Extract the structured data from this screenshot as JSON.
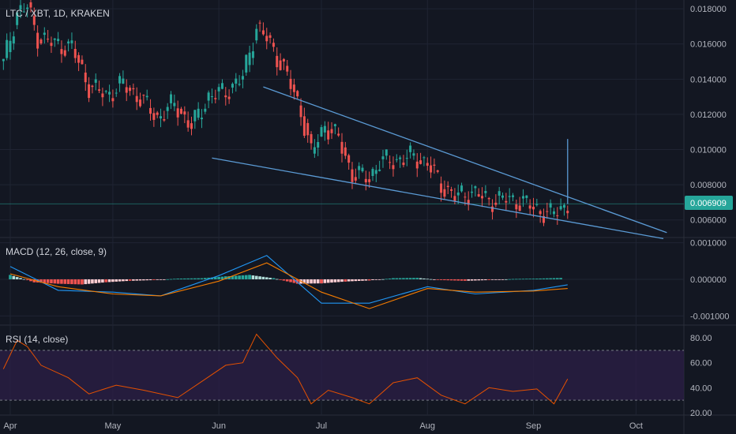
{
  "header": {
    "symbol_title": "LTC / XBT, 1D, KRAKEN",
    "macd_title": "MACD (12, 26, close, 9)",
    "rsi_title": "RSI (14, close)",
    "last_price": "0.006909"
  },
  "colors": {
    "background": "#131722",
    "grid": "#1f2433",
    "separator": "#2a2e39",
    "up": "#26a69a",
    "down": "#ef5350",
    "trendline": "#5b9bd5",
    "macd_line": "#2196f3",
    "signal_line": "#f57c00",
    "rsi_line": "#e65100",
    "rsi_band": "#2a1e45",
    "price_tag": "#26a69a"
  },
  "chart_data": [
    {
      "type": "candlestick",
      "title": "LTC / XBT, 1D, KRAKEN",
      "x_ticks": [
        "Apr",
        "May",
        "Jun",
        "Jul",
        "Aug",
        "Sep",
        "Oct"
      ],
      "y_ticks": [
        "0.018000",
        "0.016000",
        "0.014000",
        "0.012000",
        "0.010000",
        "0.008000",
        "0.006000"
      ],
      "ylim": [
        0.005,
        0.0185
      ],
      "last_value": 0.006909,
      "close_series": [
        {
          "date": "2019-03-30",
          "value": 0.0149
        },
        {
          "date": "2019-04-03",
          "value": 0.0178
        },
        {
          "date": "2019-04-06",
          "value": 0.0181
        },
        {
          "date": "2019-04-09",
          "value": 0.0164
        },
        {
          "date": "2019-04-14",
          "value": 0.016
        },
        {
          "date": "2019-04-19",
          "value": 0.0158
        },
        {
          "date": "2019-04-24",
          "value": 0.0136
        },
        {
          "date": "2019-04-29",
          "value": 0.0131
        },
        {
          "date": "2019-05-04",
          "value": 0.0137
        },
        {
          "date": "2019-05-09",
          "value": 0.0129
        },
        {
          "date": "2019-05-14",
          "value": 0.0118
        },
        {
          "date": "2019-05-19",
          "value": 0.0126
        },
        {
          "date": "2019-05-24",
          "value": 0.0113
        },
        {
          "date": "2019-05-29",
          "value": 0.013
        },
        {
          "date": "2019-06-03",
          "value": 0.0133
        },
        {
          "date": "2019-06-08",
          "value": 0.0141
        },
        {
          "date": "2019-06-12",
          "value": 0.017
        },
        {
          "date": "2019-06-15",
          "value": 0.0163
        },
        {
          "date": "2019-06-20",
          "value": 0.0146
        },
        {
          "date": "2019-06-25",
          "value": 0.0122
        },
        {
          "date": "2019-06-28",
          "value": 0.0098
        },
        {
          "date": "2019-07-02",
          "value": 0.0114
        },
        {
          "date": "2019-07-06",
          "value": 0.0106
        },
        {
          "date": "2019-07-10",
          "value": 0.0086
        },
        {
          "date": "2019-07-15",
          "value": 0.0084
        },
        {
          "date": "2019-07-18",
          "value": 0.0093
        },
        {
          "date": "2019-07-23",
          "value": 0.0094
        },
        {
          "date": "2019-07-28",
          "value": 0.0096
        },
        {
          "date": "2019-08-01",
          "value": 0.0092
        },
        {
          "date": "2019-08-05",
          "value": 0.008
        },
        {
          "date": "2019-08-09",
          "value": 0.0073
        },
        {
          "date": "2019-08-14",
          "value": 0.0076
        },
        {
          "date": "2019-08-19",
          "value": 0.0071
        },
        {
          "date": "2019-08-24",
          "value": 0.0072
        },
        {
          "date": "2019-08-29",
          "value": 0.007
        },
        {
          "date": "2019-09-02",
          "value": 0.0066
        },
        {
          "date": "2019-09-06",
          "value": 0.0063
        },
        {
          "date": "2019-09-11",
          "value": 0.0069
        }
      ],
      "annotations": [
        {
          "type": "trendline",
          "name": "upper wedge line",
          "from": {
            "date": "2019-06-14",
            "value": 0.01356
          },
          "to": {
            "date": "2019-10-10",
            "value": 0.00528
          }
        },
        {
          "type": "trendline",
          "name": "lower wedge line",
          "from": {
            "date": "2019-05-30",
            "value": 0.00952
          },
          "to": {
            "date": "2019-10-09",
            "value": 0.00494
          }
        },
        {
          "type": "vertical-line",
          "date": "2019-09-11",
          "from": 0.0069,
          "to": 0.0106
        }
      ]
    },
    {
      "type": "bar",
      "title": "MACD (12, 26, close, 9)",
      "y_ticks": [
        "0.001000",
        "0.000000",
        "-0.001000"
      ],
      "ylim": [
        -0.00125,
        0.00112
      ],
      "histogram": [
        {
          "date": "2019-04-01",
          "value": 0.00012
        },
        {
          "date": "2019-04-08",
          "value": -8e-05
        },
        {
          "date": "2019-04-15",
          "value": -0.00012
        },
        {
          "date": "2019-04-22",
          "value": -0.00014
        },
        {
          "date": "2019-04-29",
          "value": -8e-05
        },
        {
          "date": "2019-05-06",
          "value": -4e-05
        },
        {
          "date": "2019-05-13",
          "value": -2e-05
        },
        {
          "date": "2019-05-20",
          "value": 2e-05
        },
        {
          "date": "2019-05-27",
          "value": 3e-05
        },
        {
          "date": "2019-06-03",
          "value": 8e-05
        },
        {
          "date": "2019-06-10",
          "value": 0.00012
        },
        {
          "date": "2019-06-17",
          "value": 3e-05
        },
        {
          "date": "2019-06-24",
          "value": -0.00012
        },
        {
          "date": "2019-07-01",
          "value": -0.00011
        },
        {
          "date": "2019-07-08",
          "value": -6e-05
        },
        {
          "date": "2019-07-15",
          "value": -3e-05
        },
        {
          "date": "2019-07-22",
          "value": 3e-05
        },
        {
          "date": "2019-07-29",
          "value": 4e-05
        },
        {
          "date": "2019-08-05",
          "value": -2e-05
        },
        {
          "date": "2019-08-12",
          "value": -4e-05
        },
        {
          "date": "2019-08-19",
          "value": -2e-05
        },
        {
          "date": "2019-08-26",
          "value": 1e-05
        },
        {
          "date": "2019-09-02",
          "value": 2e-05
        },
        {
          "date": "2019-09-10",
          "value": 4e-05
        }
      ],
      "series": [
        {
          "name": "MACD",
          "values": [
            {
              "date": "2019-04-01",
              "value": 0.00035
            },
            {
              "date": "2019-04-15",
              "value": -0.0003
            },
            {
              "date": "2019-05-01",
              "value": -0.00035
            },
            {
              "date": "2019-05-15",
              "value": -0.00045
            },
            {
              "date": "2019-06-01",
              "value": 0.0001
            },
            {
              "date": "2019-06-15",
              "value": 0.00065
            },
            {
              "date": "2019-07-01",
              "value": -0.00065
            },
            {
              "date": "2019-07-15",
              "value": -0.00065
            },
            {
              "date": "2019-08-01",
              "value": -0.0002
            },
            {
              "date": "2019-08-15",
              "value": -0.0004
            },
            {
              "date": "2019-09-01",
              "value": -0.0003
            },
            {
              "date": "2019-09-11",
              "value": -0.00015
            }
          ]
        },
        {
          "name": "Signal",
          "values": [
            {
              "date": "2019-04-01",
              "value": 0.00015
            },
            {
              "date": "2019-04-15",
              "value": -0.0002
            },
            {
              "date": "2019-05-01",
              "value": -0.0004
            },
            {
              "date": "2019-05-15",
              "value": -0.00045
            },
            {
              "date": "2019-06-01",
              "value": -5e-05
            },
            {
              "date": "2019-06-15",
              "value": 0.00045
            },
            {
              "date": "2019-07-01",
              "value": -0.00035
            },
            {
              "date": "2019-07-15",
              "value": -0.0008
            },
            {
              "date": "2019-08-01",
              "value": -0.00025
            },
            {
              "date": "2019-08-15",
              "value": -0.00035
            },
            {
              "date": "2019-09-01",
              "value": -0.00032
            },
            {
              "date": "2019-09-11",
              "value": -0.00025
            }
          ]
        }
      ]
    },
    {
      "type": "line",
      "title": "RSI (14, close)",
      "y_ticks": [
        "80.00",
        "60.00",
        "40.00",
        "20.00"
      ],
      "ylim": [
        18,
        89
      ],
      "band": [
        30,
        70
      ],
      "series": [
        {
          "values": [
            {
              "date": "2019-03-30",
              "value": 55
            },
            {
              "date": "2019-04-03",
              "value": 78
            },
            {
              "date": "2019-04-06",
              "value": 73
            },
            {
              "date": "2019-04-10",
              "value": 58
            },
            {
              "date": "2019-04-18",
              "value": 48
            },
            {
              "date": "2019-04-24",
              "value": 35
            },
            {
              "date": "2019-05-02",
              "value": 42
            },
            {
              "date": "2019-05-10",
              "value": 38
            },
            {
              "date": "2019-05-20",
              "value": 32
            },
            {
              "date": "2019-05-27",
              "value": 45
            },
            {
              "date": "2019-06-03",
              "value": 58
            },
            {
              "date": "2019-06-08",
              "value": 60
            },
            {
              "date": "2019-06-12",
              "value": 83
            },
            {
              "date": "2019-06-18",
              "value": 64
            },
            {
              "date": "2019-06-24",
              "value": 48
            },
            {
              "date": "2019-06-28",
              "value": 27
            },
            {
              "date": "2019-07-03",
              "value": 38
            },
            {
              "date": "2019-07-10",
              "value": 32
            },
            {
              "date": "2019-07-15",
              "value": 27
            },
            {
              "date": "2019-07-22",
              "value": 44
            },
            {
              "date": "2019-07-29",
              "value": 48
            },
            {
              "date": "2019-08-05",
              "value": 34
            },
            {
              "date": "2019-08-12",
              "value": 27
            },
            {
              "date": "2019-08-19",
              "value": 40
            },
            {
              "date": "2019-08-26",
              "value": 37
            },
            {
              "date": "2019-09-02",
              "value": 39
            },
            {
              "date": "2019-09-07",
              "value": 27
            },
            {
              "date": "2019-09-11",
              "value": 47
            }
          ]
        }
      ]
    }
  ]
}
